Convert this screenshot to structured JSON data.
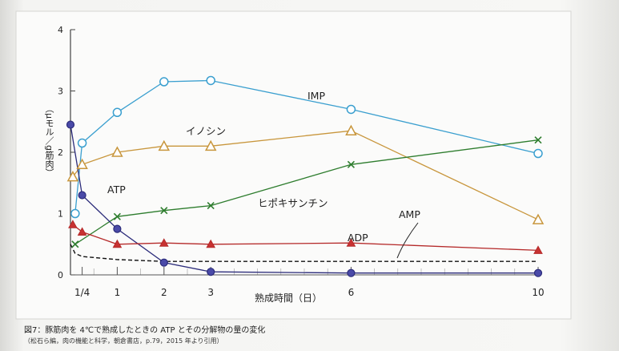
{
  "chart_data": {
    "type": "line",
    "title": "",
    "xlabel": "熟成時間（日）",
    "ylabel": "（μモル／g筋肉）",
    "xlim": [
      0,
      10
    ],
    "ylim": [
      0,
      4
    ],
    "x_ticks": [
      {
        "value": 0.25,
        "label": "1/4"
      },
      {
        "value": 1,
        "label": "1"
      },
      {
        "value": 2,
        "label": "2"
      },
      {
        "value": 3,
        "label": "3"
      },
      {
        "value": 6,
        "label": "6"
      },
      {
        "value": 10,
        "label": "10"
      }
    ],
    "y_ticks": [
      {
        "value": 0,
        "label": "0"
      },
      {
        "value": 1,
        "label": "1"
      },
      {
        "value": 2,
        "label": "2"
      },
      {
        "value": 3,
        "label": "3"
      },
      {
        "value": 4,
        "label": "4"
      }
    ],
    "series": [
      {
        "name": "IMP",
        "label": "IMP",
        "marker": "circle-open",
        "color": "#3a9fcf",
        "x": [
          0.1,
          0.25,
          1,
          2,
          3,
          6,
          10
        ],
        "y": [
          1.0,
          2.15,
          2.65,
          3.15,
          3.17,
          2.7,
          1.98
        ]
      },
      {
        "name": "イノシン",
        "label": "イノシン",
        "marker": "triangle-open",
        "color": "#c8963c",
        "x": [
          0.05,
          0.25,
          1,
          2,
          3,
          6,
          10
        ],
        "y": [
          1.6,
          1.8,
          2.0,
          2.1,
          2.1,
          2.35,
          0.9
        ]
      },
      {
        "name": "ヒポキサンチン",
        "label": "ヒポキサンチン",
        "marker": "x",
        "color": "#2e7d2e",
        "x": [
          0.1,
          1,
          2,
          3,
          6,
          10
        ],
        "y": [
          0.5,
          0.95,
          1.05,
          1.13,
          1.8,
          2.2
        ]
      },
      {
        "name": "ATP",
        "label": "ATP",
        "marker": "circle-filled",
        "color": "#2b2b7a",
        "x": [
          0,
          0.25,
          1,
          2,
          3,
          6,
          10
        ],
        "y": [
          2.45,
          1.3,
          0.75,
          0.2,
          0.05,
          0.03,
          0.03
        ]
      },
      {
        "name": "ADP",
        "label": "ADP",
        "marker": "triangle-filled",
        "color": "#b52a2a",
        "x": [
          0.05,
          0.25,
          1,
          2,
          3,
          6,
          10
        ],
        "y": [
          0.82,
          0.7,
          0.5,
          0.52,
          0.5,
          0.52,
          0.4
        ]
      },
      {
        "name": "AMP",
        "label": "AMP",
        "marker": "none",
        "color": "#222222",
        "dashed": true,
        "x": [
          0,
          0.1,
          0.25,
          1,
          2,
          3,
          6,
          10
        ],
        "y": [
          0.5,
          0.35,
          0.3,
          0.25,
          0.22,
          0.22,
          0.22,
          0.22
        ]
      }
    ]
  },
  "caption": {
    "title": "図7：豚筋肉を 4℃で熟成したときの ATP とその分解物の量の変化",
    "source": "（松石ら編，肉の機能と科学，朝倉書店，p.79，2015 年より引用）"
  }
}
